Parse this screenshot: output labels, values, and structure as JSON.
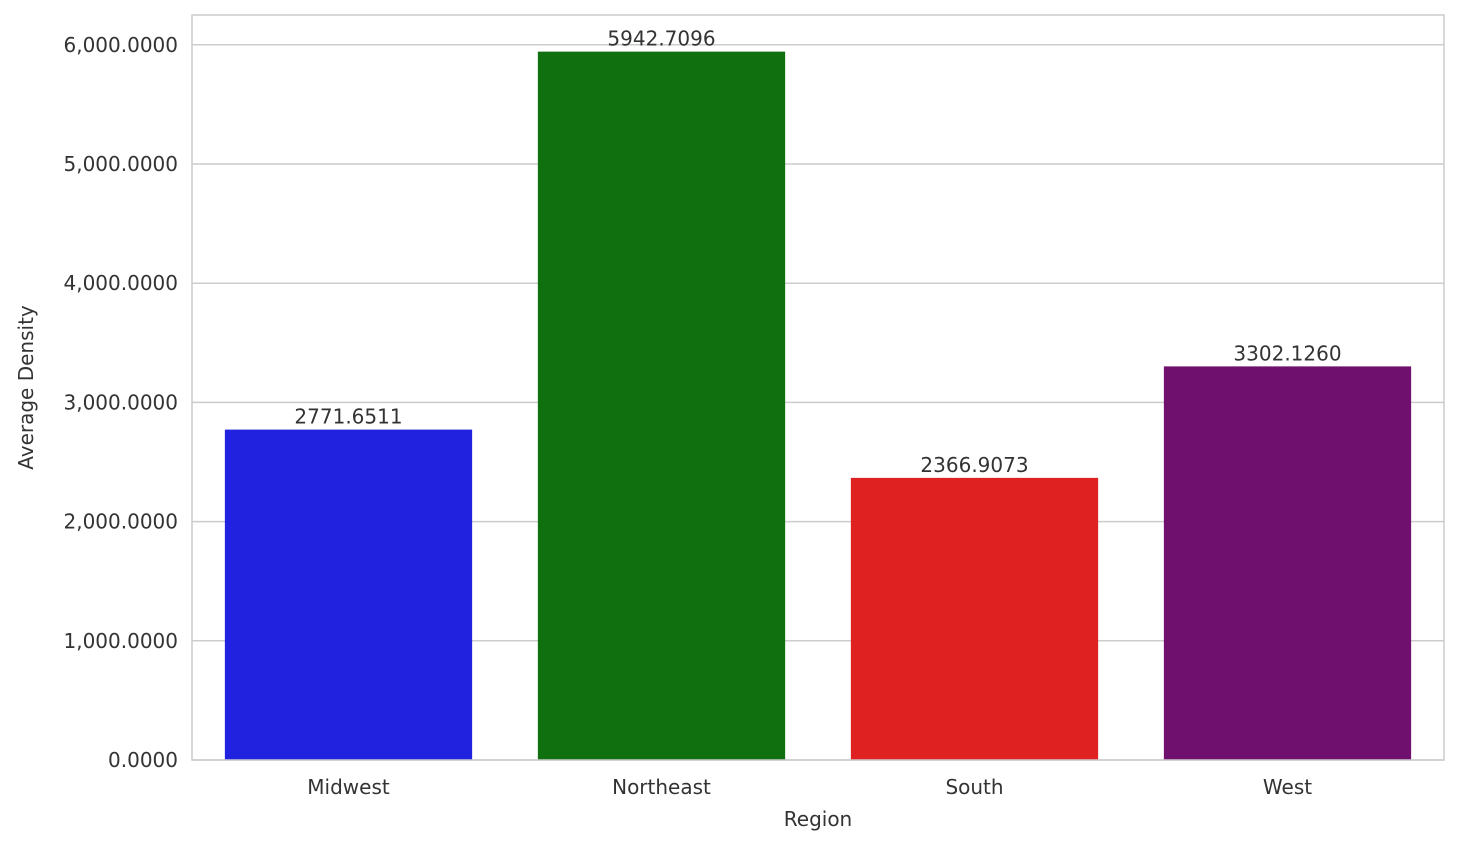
{
  "chart_data": {
    "type": "bar",
    "categories": [
      "Midwest",
      "Northeast",
      "South",
      "West"
    ],
    "values": [
      2771.6511,
      5942.7096,
      2366.9073,
      3302.126
    ],
    "value_labels": [
      "2771.6511",
      "5942.7096",
      "2366.9073",
      "3302.1260"
    ],
    "colors": [
      "#2121e0",
      "#107010",
      "#e02121",
      "#70106e"
    ],
    "xlabel": "Region",
    "ylabel": "Average Density",
    "ylim": [
      0,
      6250
    ],
    "yticks": [
      0,
      1000,
      2000,
      3000,
      4000,
      5000,
      6000
    ],
    "ytick_labels": [
      "0.0000",
      "1,000.0000",
      "2,000.0000",
      "3,000.0000",
      "4,000.0000",
      "5,000.0000",
      "6,000.0000"
    ],
    "grid": "horizontal",
    "grid_color": "#cccccc",
    "background": "#ffffff"
  }
}
